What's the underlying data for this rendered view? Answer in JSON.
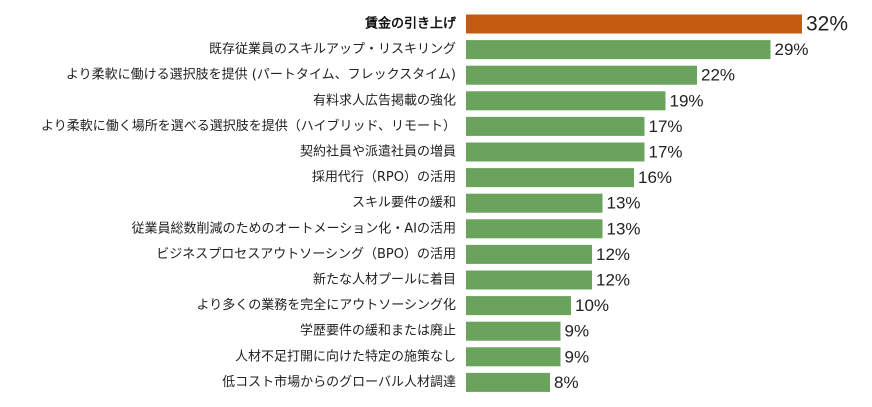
{
  "chart_data": {
    "type": "bar",
    "orientation": "horizontal",
    "categories": [
      "賃金の引き上げ",
      "既存従業員のスキルアップ・リスキリング",
      "より柔軟に働ける選択肢を提供 (パートタイム、フレックスタイム)",
      "有料求人広告掲載の強化",
      "より柔軟に働く場所を選べる選択肢を提供（ハイブリッド、リモート）",
      "契約社員や派遣社員の増員",
      "採用代行（RPO）の活用",
      "スキル要件の緩和",
      "従業員総数削減のためのオートメーション化・AIの活用",
      "ビジネスプロセスアウトソーシング（BPO）の活用",
      "新たな人材プールに着目",
      "より多くの業務を完全にアウトソーシング化",
      "学歴要件の緩和または廃止",
      "人材不足打開に向けた特定の施策なし",
      "低コスト市場からのグローバル人材調達"
    ],
    "values": [
      32,
      29,
      22,
      19,
      17,
      17,
      16,
      13,
      13,
      12,
      12,
      10,
      9,
      9,
      8
    ],
    "value_labels": [
      "32%",
      "29%",
      "22%",
      "19%",
      "17%",
      "17%",
      "16%",
      "13%",
      "13%",
      "12%",
      "12%",
      "10%",
      "9%",
      "9%",
      "8%"
    ],
    "unit": "%",
    "xlim": [
      0,
      34
    ],
    "highlight_index": 0,
    "colors": {
      "highlight": "#c55a11",
      "default": "#6aa45c"
    },
    "grid": false,
    "legend": "none"
  }
}
